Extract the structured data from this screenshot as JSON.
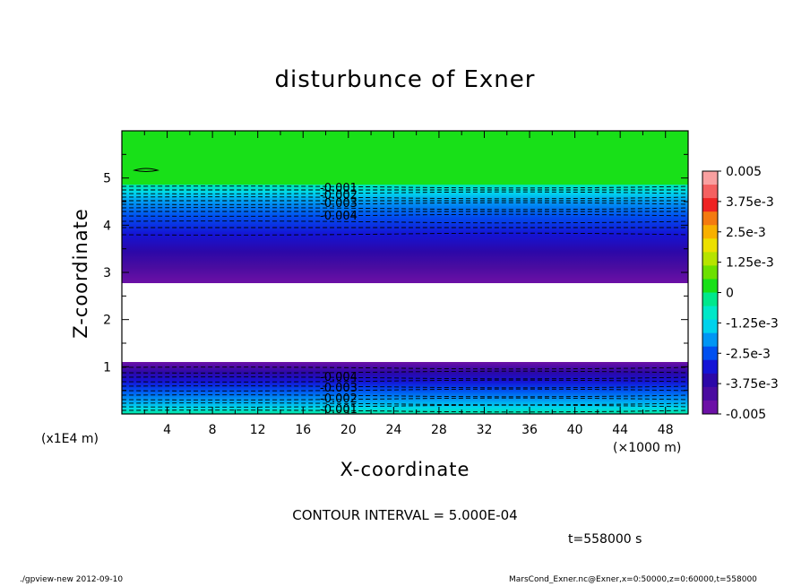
{
  "chart_data": {
    "type": "heatmap",
    "title": "disturbunce of Exner",
    "xlabel": "X-coordinate",
    "ylabel": "Z-coordinate",
    "x_scale_label": "(×1000 m)",
    "y_scale_label": "(x1E4 m)",
    "xlim": [
      0,
      50
    ],
    "ylim": [
      0,
      6
    ],
    "x_ticks": [
      4,
      8,
      12,
      16,
      20,
      24,
      28,
      32,
      36,
      40,
      44,
      48
    ],
    "y_ticks": [
      1,
      2,
      3,
      4,
      5
    ],
    "colorbar": {
      "vmin": -0.005,
      "vmax": 0.005,
      "labels": [
        "0.005",
        "3.75e-3",
        "2.5e-3",
        "1.25e-3",
        "0",
        "-1.25e-3",
        "-2.5e-3",
        "-3.75e-3",
        "-0.005"
      ],
      "label_values": [
        0.005,
        0.00375,
        0.0025,
        0.00125,
        0,
        -0.00125,
        -0.0025,
        -0.00375,
        -0.005
      ],
      "colors": [
        "#f9a0a0",
        "#f46060",
        "#ee2222",
        "#f47a10",
        "#f8b000",
        "#ece000",
        "#b6e400",
        "#6ce000",
        "#18e018",
        "#00e88c",
        "#00e8c8",
        "#00d2ec",
        "#0096f4",
        "#0050f0",
        "#1414d6",
        "#2c08a8",
        "#4a0ca0",
        "#6c10a6"
      ]
    },
    "contour_labels_upper": [
      "-0.001",
      "-0.002",
      "-0.003",
      "-0.004"
    ],
    "contour_labels_lower": [
      "-0.004",
      "-0.003",
      "-0.002",
      "-0.001"
    ],
    "contour_interval": "CONTOUR INTERVAL = 5.000E-04",
    "time": "t=558000 s"
  },
  "footer": {
    "left": "./gpview-new   2012-09-10",
    "right": "MarsCond_Exner.nc@Exner,x=0:50000,z=0:60000,t=558000"
  }
}
